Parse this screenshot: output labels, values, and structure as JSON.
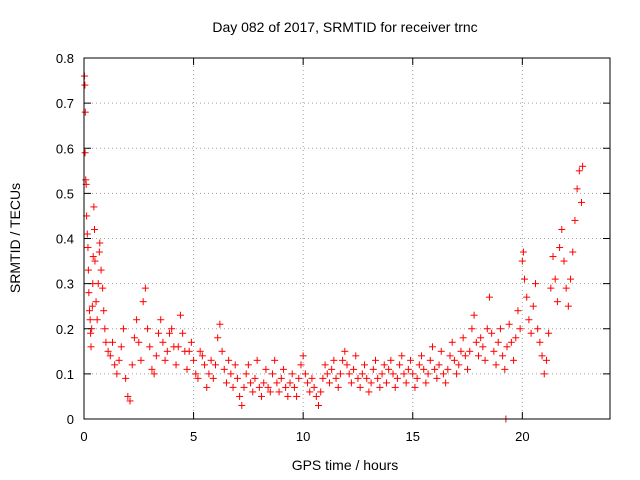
{
  "chart_data": {
    "type": "scatter",
    "title": "Day 082 of 2017, SRMTID for receiver trnc",
    "xlabel": "GPS time / hours",
    "ylabel": "SRMTID / TECUs",
    "xlim": [
      0,
      24
    ],
    "ylim": [
      0,
      0.8
    ],
    "x_ticks": [
      0,
      5,
      10,
      15,
      20
    ],
    "y_ticks": [
      0,
      0.1,
      0.2,
      0.3,
      0.4,
      0.5,
      0.6,
      0.7,
      0.8
    ],
    "x_tick_labels": [
      "0",
      "5",
      "10",
      "15",
      "20"
    ],
    "y_tick_labels": [
      "0",
      "0.1",
      "0.2",
      "0.3",
      "0.4",
      "0.5",
      "0.6",
      "0.7",
      "0.8"
    ],
    "grid": true,
    "marker": "+",
    "marker_color": "#ff0000",
    "series": [
      {
        "name": "SRMTID",
        "points": [
          [
            0.02,
            0.76
          ],
          [
            0.04,
            0.74
          ],
          [
            0.06,
            0.68
          ],
          [
            0.05,
            0.59
          ],
          [
            0.08,
            0.53
          ],
          [
            0.1,
            0.52
          ],
          [
            0.12,
            0.45
          ],
          [
            0.15,
            0.41
          ],
          [
            0.18,
            0.38
          ],
          [
            0.2,
            0.33
          ],
          [
            0.22,
            0.28
          ],
          [
            0.25,
            0.24
          ],
          [
            0.28,
            0.22
          ],
          [
            0.3,
            0.19
          ],
          [
            0.32,
            0.16
          ],
          [
            0.35,
            0.2
          ],
          [
            0.38,
            0.25
          ],
          [
            0.4,
            0.3
          ],
          [
            0.42,
            0.36
          ],
          [
            0.45,
            0.47
          ],
          [
            0.48,
            0.42
          ],
          [
            0.5,
            0.35
          ],
          [
            0.55,
            0.26
          ],
          [
            0.6,
            0.22
          ],
          [
            0.65,
            0.3
          ],
          [
            0.7,
            0.37
          ],
          [
            0.72,
            0.39
          ],
          [
            0.78,
            0.33
          ],
          [
            0.85,
            0.29
          ],
          [
            0.9,
            0.24
          ],
          [
            0.95,
            0.2
          ],
          [
            1.0,
            0.17
          ],
          [
            1.1,
            0.15
          ],
          [
            1.2,
            0.14
          ],
          [
            1.3,
            0.17
          ],
          [
            1.4,
            0.12
          ],
          [
            1.5,
            0.1
          ],
          [
            1.6,
            0.13
          ],
          [
            1.7,
            0.16
          ],
          [
            1.8,
            0.2
          ],
          [
            1.9,
            0.09
          ],
          [
            2.0,
            0.05
          ],
          [
            2.1,
            0.04
          ],
          [
            2.2,
            0.12
          ],
          [
            2.3,
            0.18
          ],
          [
            2.4,
            0.22
          ],
          [
            2.5,
            0.17
          ],
          [
            2.6,
            0.13
          ],
          [
            2.7,
            0.26
          ],
          [
            2.8,
            0.29
          ],
          [
            2.9,
            0.2
          ],
          [
            3.0,
            0.16
          ],
          [
            3.1,
            0.11
          ],
          [
            3.2,
            0.1
          ],
          [
            3.3,
            0.14
          ],
          [
            3.4,
            0.19
          ],
          [
            3.5,
            0.22
          ],
          [
            3.6,
            0.17
          ],
          [
            3.7,
            0.13
          ],
          [
            3.8,
            0.15
          ],
          [
            3.9,
            0.19
          ],
          [
            4.0,
            0.2
          ],
          [
            4.1,
            0.16
          ],
          [
            4.2,
            0.12
          ],
          [
            4.3,
            0.16
          ],
          [
            4.4,
            0.23
          ],
          [
            4.5,
            0.19
          ],
          [
            4.6,
            0.15
          ],
          [
            4.7,
            0.11
          ],
          [
            4.8,
            0.15
          ],
          [
            4.9,
            0.17
          ],
          [
            5.0,
            0.13
          ],
          [
            5.1,
            0.1
          ],
          [
            5.2,
            0.09
          ],
          [
            5.3,
            0.15
          ],
          [
            5.4,
            0.14
          ],
          [
            5.5,
            0.12
          ],
          [
            5.6,
            0.07
          ],
          [
            5.7,
            0.1
          ],
          [
            5.8,
            0.13
          ],
          [
            5.9,
            0.09
          ],
          [
            6.0,
            0.12
          ],
          [
            6.1,
            0.18
          ],
          [
            6.2,
            0.21
          ],
          [
            6.3,
            0.15
          ],
          [
            6.4,
            0.11
          ],
          [
            6.5,
            0.08
          ],
          [
            6.6,
            0.13
          ],
          [
            6.7,
            0.1
          ],
          [
            6.8,
            0.07
          ],
          [
            6.9,
            0.12
          ],
          [
            7.0,
            0.09
          ],
          [
            7.1,
            0.05
          ],
          [
            7.2,
            0.03
          ],
          [
            7.3,
            0.07
          ],
          [
            7.4,
            0.1
          ],
          [
            7.5,
            0.12
          ],
          [
            7.6,
            0.08
          ],
          [
            7.7,
            0.06
          ],
          [
            7.8,
            0.09
          ],
          [
            7.9,
            0.13
          ],
          [
            8.0,
            0.07
          ],
          [
            8.1,
            0.05
          ],
          [
            8.2,
            0.08
          ],
          [
            8.3,
            0.11
          ],
          [
            8.4,
            0.07
          ],
          [
            8.5,
            0.06
          ],
          [
            8.6,
            0.1
          ],
          [
            8.7,
            0.13
          ],
          [
            8.8,
            0.08
          ],
          [
            8.9,
            0.06
          ],
          [
            9.0,
            0.09
          ],
          [
            9.1,
            0.11
          ],
          [
            9.2,
            0.07
          ],
          [
            9.3,
            0.05
          ],
          [
            9.4,
            0.08
          ],
          [
            9.5,
            0.1
          ],
          [
            9.6,
            0.07
          ],
          [
            9.7,
            0.05
          ],
          [
            9.8,
            0.09
          ],
          [
            9.9,
            0.12
          ],
          [
            10.0,
            0.14
          ],
          [
            10.1,
            0.1
          ],
          [
            10.2,
            0.08
          ],
          [
            10.3,
            0.06
          ],
          [
            10.4,
            0.09
          ],
          [
            10.5,
            0.07
          ],
          [
            10.6,
            0.05
          ],
          [
            10.7,
            0.03
          ],
          [
            10.8,
            0.06
          ],
          [
            10.9,
            0.09
          ],
          [
            11.0,
            0.12
          ],
          [
            11.1,
            0.1
          ],
          [
            11.2,
            0.08
          ],
          [
            11.3,
            0.11
          ],
          [
            11.4,
            0.13
          ],
          [
            11.5,
            0.09
          ],
          [
            11.6,
            0.07
          ],
          [
            11.7,
            0.1
          ],
          [
            11.8,
            0.13
          ],
          [
            11.9,
            0.15
          ],
          [
            12.0,
            0.12
          ],
          [
            12.1,
            0.1
          ],
          [
            12.2,
            0.08
          ],
          [
            12.3,
            0.11
          ],
          [
            12.4,
            0.14
          ],
          [
            12.5,
            0.09
          ],
          [
            12.6,
            0.07
          ],
          [
            12.7,
            0.1
          ],
          [
            12.8,
            0.12
          ],
          [
            12.9,
            0.09
          ],
          [
            13.0,
            0.06
          ],
          [
            13.1,
            0.08
          ],
          [
            13.2,
            0.11
          ],
          [
            13.3,
            0.13
          ],
          [
            13.4,
            0.09
          ],
          [
            13.5,
            0.07
          ],
          [
            13.6,
            0.1
          ],
          [
            13.7,
            0.12
          ],
          [
            13.8,
            0.08
          ],
          [
            13.9,
            0.11
          ],
          [
            14.0,
            0.13
          ],
          [
            14.1,
            0.1
          ],
          [
            14.2,
            0.07
          ],
          [
            14.3,
            0.09
          ],
          [
            14.4,
            0.12
          ],
          [
            14.5,
            0.14
          ],
          [
            14.6,
            0.1
          ],
          [
            14.7,
            0.08
          ],
          [
            14.8,
            0.11
          ],
          [
            14.9,
            0.13
          ],
          [
            15.0,
            0.1
          ],
          [
            15.1,
            0.07
          ],
          [
            15.2,
            0.09
          ],
          [
            15.3,
            0.12
          ],
          [
            15.4,
            0.14
          ],
          [
            15.5,
            0.11
          ],
          [
            15.6,
            0.08
          ],
          [
            15.7,
            0.1
          ],
          [
            15.8,
            0.13
          ],
          [
            15.9,
            0.16
          ],
          [
            16.0,
            0.11
          ],
          [
            16.1,
            0.09
          ],
          [
            16.2,
            0.12
          ],
          [
            16.3,
            0.15
          ],
          [
            16.4,
            0.1
          ],
          [
            16.5,
            0.08
          ],
          [
            16.6,
            0.11
          ],
          [
            16.7,
            0.14
          ],
          [
            16.8,
            0.17
          ],
          [
            16.9,
            0.13
          ],
          [
            17.0,
            0.1
          ],
          [
            17.1,
            0.12
          ],
          [
            17.2,
            0.15
          ],
          [
            17.3,
            0.18
          ],
          [
            17.4,
            0.14
          ],
          [
            17.5,
            0.11
          ],
          [
            17.6,
            0.15
          ],
          [
            17.7,
            0.2
          ],
          [
            17.8,
            0.23
          ],
          [
            17.9,
            0.17
          ],
          [
            18.0,
            0.14
          ],
          [
            18.1,
            0.18
          ],
          [
            18.2,
            0.16
          ],
          [
            18.3,
            0.13
          ],
          [
            18.4,
            0.2
          ],
          [
            18.5,
            0.27
          ],
          [
            18.6,
            0.19
          ],
          [
            18.7,
            0.15
          ],
          [
            18.8,
            0.12
          ],
          [
            18.9,
            0.17
          ],
          [
            19.0,
            0.2
          ],
          [
            19.1,
            0.14
          ],
          [
            19.2,
            0.11
          ],
          [
            19.25,
            0.0
          ],
          [
            19.3,
            0.16
          ],
          [
            19.4,
            0.21
          ],
          [
            19.5,
            0.17
          ],
          [
            19.6,
            0.13
          ],
          [
            19.7,
            0.18
          ],
          [
            19.8,
            0.24
          ],
          [
            19.9,
            0.2
          ],
          [
            20.0,
            0.35
          ],
          [
            20.05,
            0.37
          ],
          [
            20.1,
            0.31
          ],
          [
            20.2,
            0.27
          ],
          [
            20.3,
            0.22
          ],
          [
            20.4,
            0.19
          ],
          [
            20.5,
            0.25
          ],
          [
            20.6,
            0.3
          ],
          [
            20.7,
            0.2
          ],
          [
            20.8,
            0.17
          ],
          [
            20.9,
            0.14
          ],
          [
            21.0,
            0.1
          ],
          [
            21.1,
            0.13
          ],
          [
            21.2,
            0.19
          ],
          [
            21.3,
            0.29
          ],
          [
            21.4,
            0.36
          ],
          [
            21.5,
            0.31
          ],
          [
            21.6,
            0.26
          ],
          [
            21.7,
            0.38
          ],
          [
            21.8,
            0.42
          ],
          [
            21.9,
            0.35
          ],
          [
            22.0,
            0.29
          ],
          [
            22.1,
            0.25
          ],
          [
            22.2,
            0.31
          ],
          [
            22.3,
            0.37
          ],
          [
            22.4,
            0.44
          ],
          [
            22.5,
            0.51
          ],
          [
            22.6,
            0.55
          ],
          [
            22.7,
            0.48
          ],
          [
            22.75,
            0.56
          ]
        ]
      }
    ]
  }
}
